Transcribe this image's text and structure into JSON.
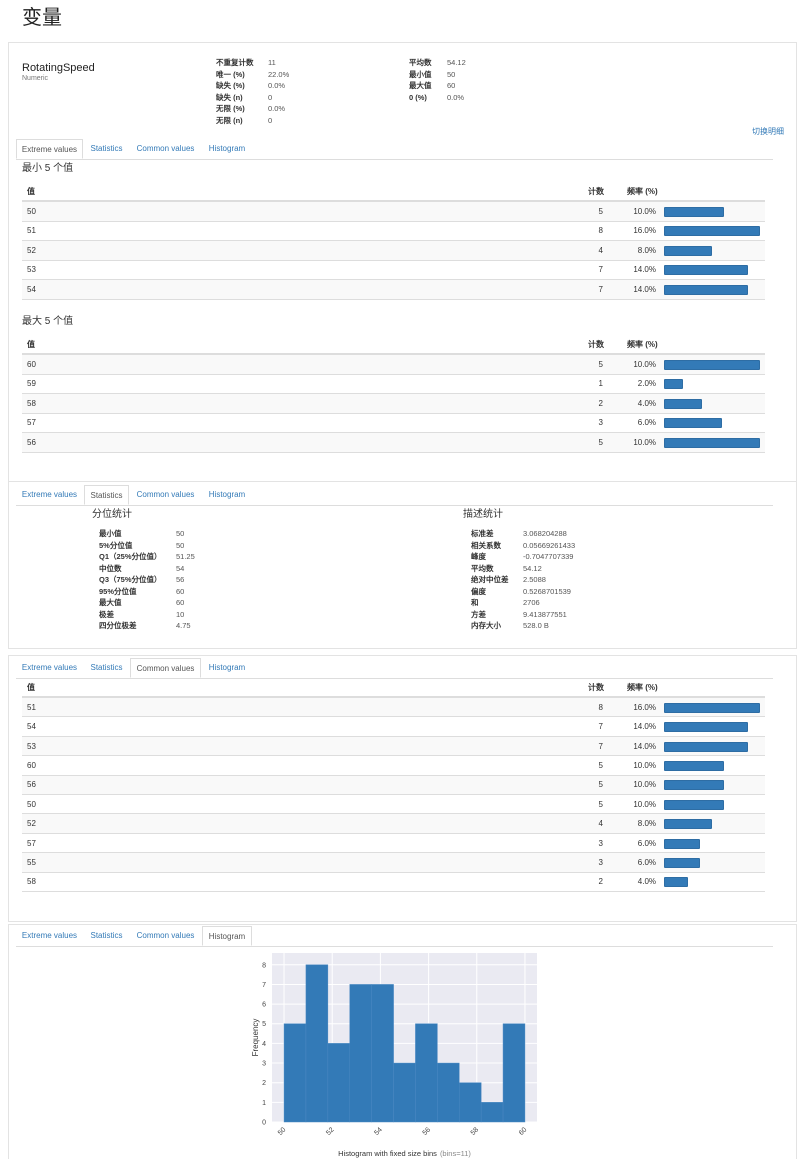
{
  "page_title": "变量",
  "variable": {
    "name": "RotatingSpeed",
    "type": "Numeric",
    "overview": [
      [
        [
          "不重复计数",
          "11"
        ],
        [
          "唯一 (%)",
          "22.0%"
        ],
        [
          "缺失 (%)",
          "0.0%"
        ],
        [
          "缺失 (n)",
          "0"
        ],
        [
          "无限 (%)",
          "0.0%"
        ],
        [
          "无限 (n)",
          "0"
        ]
      ],
      [
        [
          "平均数",
          "54.12"
        ],
        [
          "最小值",
          "50"
        ],
        [
          "最大值",
          "60"
        ],
        [
          "0 (%)",
          "0.0%"
        ]
      ]
    ]
  },
  "toggle": "切换明细",
  "tabs": [
    "Extreme values",
    "Statistics",
    "Common values",
    "Histogram"
  ],
  "extreme": {
    "min_title": "最小 5 个值",
    "max_title": "最大 5 个值",
    "headers": [
      "值",
      "计数",
      "频率 (%)"
    ],
    "min_rows": [
      {
        "value": "50",
        "count": 5,
        "freq": "10.0%"
      },
      {
        "value": "51",
        "count": 8,
        "freq": "16.0%"
      },
      {
        "value": "52",
        "count": 4,
        "freq": "8.0%"
      },
      {
        "value": "53",
        "count": 7,
        "freq": "14.0%"
      },
      {
        "value": "54",
        "count": 7,
        "freq": "14.0%"
      }
    ],
    "max_rows": [
      {
        "value": "60",
        "count": 5,
        "freq": "10.0%"
      },
      {
        "value": "59",
        "count": 1,
        "freq": "2.0%"
      },
      {
        "value": "58",
        "count": 2,
        "freq": "4.0%"
      },
      {
        "value": "57",
        "count": 3,
        "freq": "6.0%"
      },
      {
        "value": "56",
        "count": 5,
        "freq": "10.0%"
      }
    ]
  },
  "statistics": {
    "quantile_title": "分位统计",
    "quantile": [
      [
        "最小值",
        "50"
      ],
      [
        "5%分位值",
        "50"
      ],
      [
        "Q1（25%分位值）",
        "51.25"
      ],
      [
        "中位数",
        "54"
      ],
      [
        "Q3（75%分位值）",
        "56"
      ],
      [
        "95%分位值",
        "60"
      ],
      [
        "最大值",
        "60"
      ],
      [
        "极差",
        "10"
      ],
      [
        "四分位极差",
        "4.75"
      ]
    ],
    "descriptive_title": "描述统计",
    "descriptive": [
      [
        "标准差",
        "3.068204288"
      ],
      [
        "相关系数",
        "0.05669261433"
      ],
      [
        "峰度",
        "-0.7047707339"
      ],
      [
        "平均数",
        "54.12"
      ],
      [
        "绝对中位差",
        "2.5088"
      ],
      [
        "偏度",
        "0.5268701539"
      ],
      [
        "和",
        "2706"
      ],
      [
        "方差",
        "9.413877551"
      ],
      [
        "内存大小",
        "528.0 B"
      ]
    ]
  },
  "common": {
    "headers": [
      "值",
      "计数",
      "频率 (%)"
    ],
    "rows": [
      {
        "value": "51",
        "count": 8,
        "freq": "16.0%"
      },
      {
        "value": "54",
        "count": 7,
        "freq": "14.0%"
      },
      {
        "value": "53",
        "count": 7,
        "freq": "14.0%"
      },
      {
        "value": "60",
        "count": 5,
        "freq": "10.0%"
      },
      {
        "value": "56",
        "count": 5,
        "freq": "10.0%"
      },
      {
        "value": "50",
        "count": 5,
        "freq": "10.0%"
      },
      {
        "value": "52",
        "count": 4,
        "freq": "8.0%"
      },
      {
        "value": "57",
        "count": 3,
        "freq": "6.0%"
      },
      {
        "value": "55",
        "count": 3,
        "freq": "6.0%"
      },
      {
        "value": "58",
        "count": 2,
        "freq": "4.0%"
      }
    ]
  },
  "histogram": {
    "type": "histogram",
    "xlabel": "Histogram with fixed size bins",
    "xlabel_note": "(bins=11)",
    "ylabel": "Frequency",
    "color": "#337ab7",
    "bins": [
      50,
      50.9091,
      51.8182,
      52.7273,
      53.6364,
      54.5455,
      55.4545,
      56.3636,
      57.2727,
      58.1818,
      59.0909,
      60
    ],
    "counts": [
      5,
      8,
      4,
      7,
      7,
      3,
      5,
      3,
      2,
      1,
      5
    ],
    "xlim": [
      49.5,
      60.5
    ],
    "ylim": [
      0,
      8.6
    ],
    "xticks": [
      50,
      52,
      54,
      56,
      58,
      60
    ],
    "yticks": [
      0,
      1,
      2,
      3,
      4,
      5,
      6,
      7,
      8
    ],
    "grid": true
  }
}
